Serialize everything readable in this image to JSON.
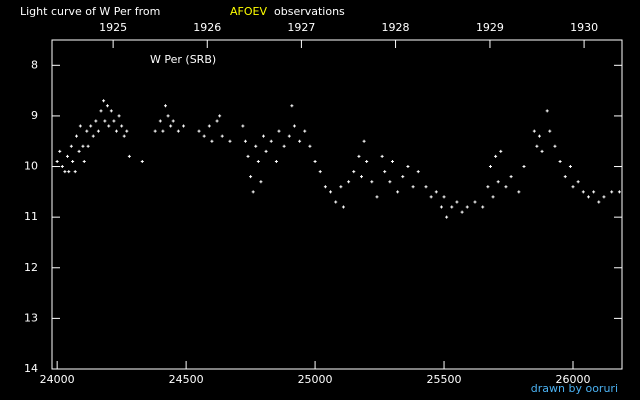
{
  "chart_data": {
    "type": "scatter",
    "title": "Light curve of W Per from",
    "title_highlight": "AFOEV",
    "title_suffix": "observations",
    "annotation": "W Per (SRB)",
    "credit": "drawn by ooruri",
    "color": "#ffffff",
    "highlight_color": "#ffff00",
    "credit_color": "#4ab0f0",
    "xlim": [
      23980,
      26190
    ],
    "ylim": [
      14,
      7.5
    ],
    "xticks": [
      24000,
      24500,
      25000,
      25500,
      26000
    ],
    "yticks": [
      8,
      9,
      10,
      11,
      12,
      13,
      14
    ],
    "x2ticks": [
      {
        "value": 24217,
        "label": "1925"
      },
      {
        "value": 24582,
        "label": "1926"
      },
      {
        "value": 24947,
        "label": "1927"
      },
      {
        "value": 25312,
        "label": "1928"
      },
      {
        "value": 25678,
        "label": "1929"
      },
      {
        "value": 26043,
        "label": "1930"
      }
    ],
    "x": [
      24000,
      24010,
      24020,
      24030,
      24040,
      24045,
      24055,
      24060,
      24070,
      24075,
      24085,
      24090,
      24100,
      24105,
      24115,
      24120,
      24130,
      24140,
      24150,
      24160,
      24170,
      24180,
      24185,
      24195,
      24200,
      24210,
      24220,
      24230,
      24240,
      24250,
      24260,
      24270,
      24280,
      24330,
      24380,
      24400,
      24410,
      24420,
      24430,
      24440,
      24450,
      24470,
      24490,
      24550,
      24570,
      24590,
      24600,
      24620,
      24630,
      24640,
      24670,
      24720,
      24730,
      24740,
      24750,
      24760,
      24770,
      24780,
      24790,
      24800,
      24810,
      24830,
      24850,
      24860,
      24880,
      24900,
      24910,
      24920,
      24940,
      24960,
      24980,
      25000,
      25020,
      25040,
      25060,
      25080,
      25100,
      25110,
      25130,
      25150,
      25170,
      25180,
      25190,
      25200,
      25220,
      25240,
      25260,
      25270,
      25290,
      25300,
      25320,
      25340,
      25360,
      25380,
      25400,
      25430,
      25450,
      25470,
      25490,
      25500,
      25510,
      25530,
      25550,
      25570,
      25590,
      25620,
      25650,
      25670,
      25680,
      25690,
      25700,
      25710,
      25720,
      25740,
      25760,
      25790,
      25810,
      25850,
      25860,
      25870,
      25880,
      25900,
      25910,
      25930,
      25950,
      25970,
      25990,
      26000,
      26020,
      26040,
      26060,
      26080,
      26100,
      26120,
      26150,
      26180
    ],
    "y": [
      9.9,
      9.7,
      10.0,
      10.1,
      9.8,
      10.1,
      9.6,
      9.9,
      10.1,
      9.4,
      9.7,
      9.2,
      9.6,
      9.9,
      9.3,
      9.6,
      9.2,
      9.4,
      9.1,
      9.3,
      8.9,
      8.7,
      9.1,
      8.8,
      9.2,
      8.9,
      9.1,
      9.3,
      9.0,
      9.2,
      9.4,
      9.3,
      9.8,
      9.9,
      9.3,
      9.1,
      9.3,
      8.8,
      9.0,
      9.2,
      9.1,
      9.3,
      9.2,
      9.3,
      9.4,
      9.2,
      9.5,
      9.1,
      9.0,
      9.4,
      9.5,
      9.2,
      9.5,
      9.8,
      10.2,
      10.5,
      9.6,
      9.9,
      10.3,
      9.4,
      9.7,
      9.5,
      9.9,
      9.3,
      9.6,
      9.4,
      8.8,
      9.2,
      9.5,
      9.3,
      9.6,
      9.9,
      10.1,
      10.4,
      10.5,
      10.7,
      10.4,
      10.8,
      10.3,
      10.1,
      9.8,
      10.2,
      9.5,
      9.9,
      10.3,
      10.6,
      9.8,
      10.1,
      10.3,
      9.9,
      10.5,
      10.2,
      10.0,
      10.4,
      10.1,
      10.4,
      10.6,
      10.5,
      10.8,
      10.6,
      11.0,
      10.8,
      10.7,
      10.9,
      10.8,
      10.7,
      10.8,
      10.4,
      10.0,
      10.6,
      9.8,
      10.3,
      9.7,
      10.4,
      10.2,
      10.5,
      10.0,
      9.3,
      9.6,
      9.4,
      9.7,
      8.9,
      9.3,
      9.6,
      9.9,
      10.2,
      10.0,
      10.4,
      10.3,
      10.5,
      10.6,
      10.5,
      10.7,
      10.6,
      10.5,
      10.5
    ]
  }
}
